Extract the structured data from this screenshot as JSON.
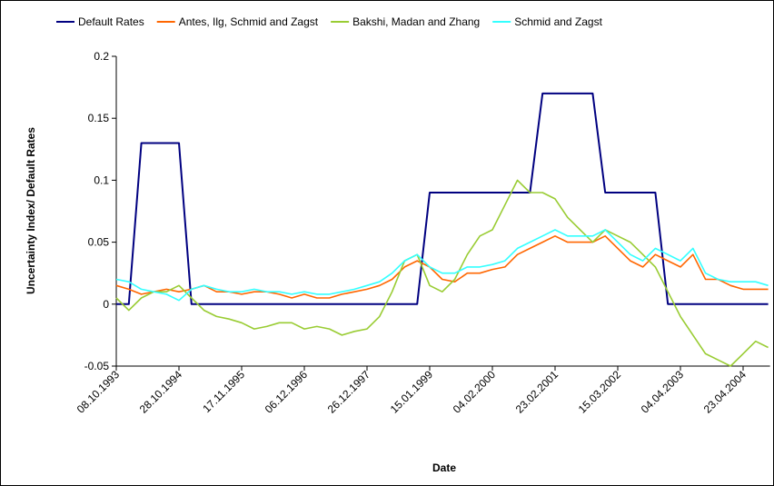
{
  "chart_data": {
    "type": "line",
    "y_label": "Uncertainty Index/ Default Rates",
    "x_label": "Date",
    "categories": [
      "08.10.1993",
      null,
      null,
      null,
      null,
      "28.10.1994",
      null,
      null,
      null,
      null,
      "17.11.1995",
      null,
      null,
      null,
      null,
      "06.12.1996",
      null,
      null,
      null,
      null,
      "26.12.1997",
      null,
      null,
      null,
      null,
      "15.01.1999",
      null,
      null,
      null,
      null,
      "04.02.2000",
      null,
      null,
      null,
      null,
      "23.02.2001",
      null,
      null,
      null,
      null,
      "15.03.2002",
      null,
      null,
      null,
      null,
      "04.04.2003",
      null,
      null,
      null,
      null,
      "23.04.2004",
      null,
      null
    ],
    "series": [
      {
        "name": "Default Rates",
        "color": "#000080",
        "values": [
          0,
          0,
          0.13,
          0.13,
          0.13,
          0.13,
          0,
          0,
          0,
          0,
          0,
          0,
          0,
          0,
          0,
          0,
          0,
          0,
          0,
          0,
          0,
          0,
          0,
          0,
          0,
          0.09,
          0.09,
          0.09,
          0.09,
          0.09,
          0.09,
          0.09,
          0.09,
          0.09,
          0.17,
          0.17,
          0.17,
          0.17,
          0.17,
          0.09,
          0.09,
          0.09,
          0.09,
          0.09,
          0,
          0,
          0,
          0,
          0,
          0,
          0,
          0,
          0
        ]
      },
      {
        "name": "Antes, Ilg, Schmid and Zagst",
        "color": "#ff6600",
        "values": [
          0.015,
          0.012,
          0.008,
          0.01,
          0.012,
          0.01,
          0.012,
          0.015,
          0.01,
          0.01,
          0.008,
          0.01,
          0.01,
          0.008,
          0.005,
          0.008,
          0.005,
          0.005,
          0.008,
          0.01,
          0.012,
          0.015,
          0.02,
          0.03,
          0.035,
          0.03,
          0.02,
          0.018,
          0.025,
          0.025,
          0.028,
          0.03,
          0.04,
          0.045,
          0.05,
          0.055,
          0.05,
          0.05,
          0.05,
          0.055,
          0.045,
          0.035,
          0.03,
          0.04,
          0.035,
          0.03,
          0.04,
          0.02,
          0.02,
          0.015,
          0.012,
          0.012,
          0.012
        ]
      },
      {
        "name": "Bakshi, Madan and Zhang",
        "color": "#99cc33",
        "values": [
          0.005,
          -0.005,
          0.005,
          0.01,
          0.01,
          0.015,
          0.005,
          -0.005,
          -0.01,
          -0.012,
          -0.015,
          -0.02,
          -0.018,
          -0.015,
          -0.015,
          -0.02,
          -0.018,
          -0.02,
          -0.025,
          -0.022,
          -0.02,
          -0.01,
          0.01,
          0.035,
          0.04,
          0.015,
          0.01,
          0.02,
          0.04,
          0.055,
          0.06,
          0.08,
          0.1,
          0.09,
          0.09,
          0.085,
          0.07,
          0.06,
          0.05,
          0.06,
          0.055,
          0.05,
          0.04,
          0.03,
          0.01,
          -0.01,
          -0.025,
          -0.04,
          -0.045,
          -0.05,
          -0.04,
          -0.03,
          -0.035
        ]
      },
      {
        "name": "Schmid and Zagst",
        "color": "#33ffff",
        "values": [
          0.02,
          0.018,
          0.012,
          0.01,
          0.008,
          0.003,
          0.012,
          0.015,
          0.012,
          0.01,
          0.01,
          0.012,
          0.01,
          0.01,
          0.008,
          0.01,
          0.008,
          0.008,
          0.01,
          0.012,
          0.015,
          0.018,
          0.025,
          0.035,
          0.04,
          0.03,
          0.025,
          0.025,
          0.03,
          0.03,
          0.032,
          0.035,
          0.045,
          0.05,
          0.055,
          0.06,
          0.055,
          0.055,
          0.055,
          0.06,
          0.05,
          0.04,
          0.035,
          0.045,
          0.04,
          0.035,
          0.045,
          0.025,
          0.02,
          0.018,
          0.018,
          0.018,
          0.015
        ]
      }
    ],
    "ylim": [
      -0.05,
      0.2
    ],
    "yticks": [
      -0.05,
      0,
      0.05,
      0.1,
      0.15,
      0.2
    ],
    "grid": false,
    "legend": "top"
  }
}
